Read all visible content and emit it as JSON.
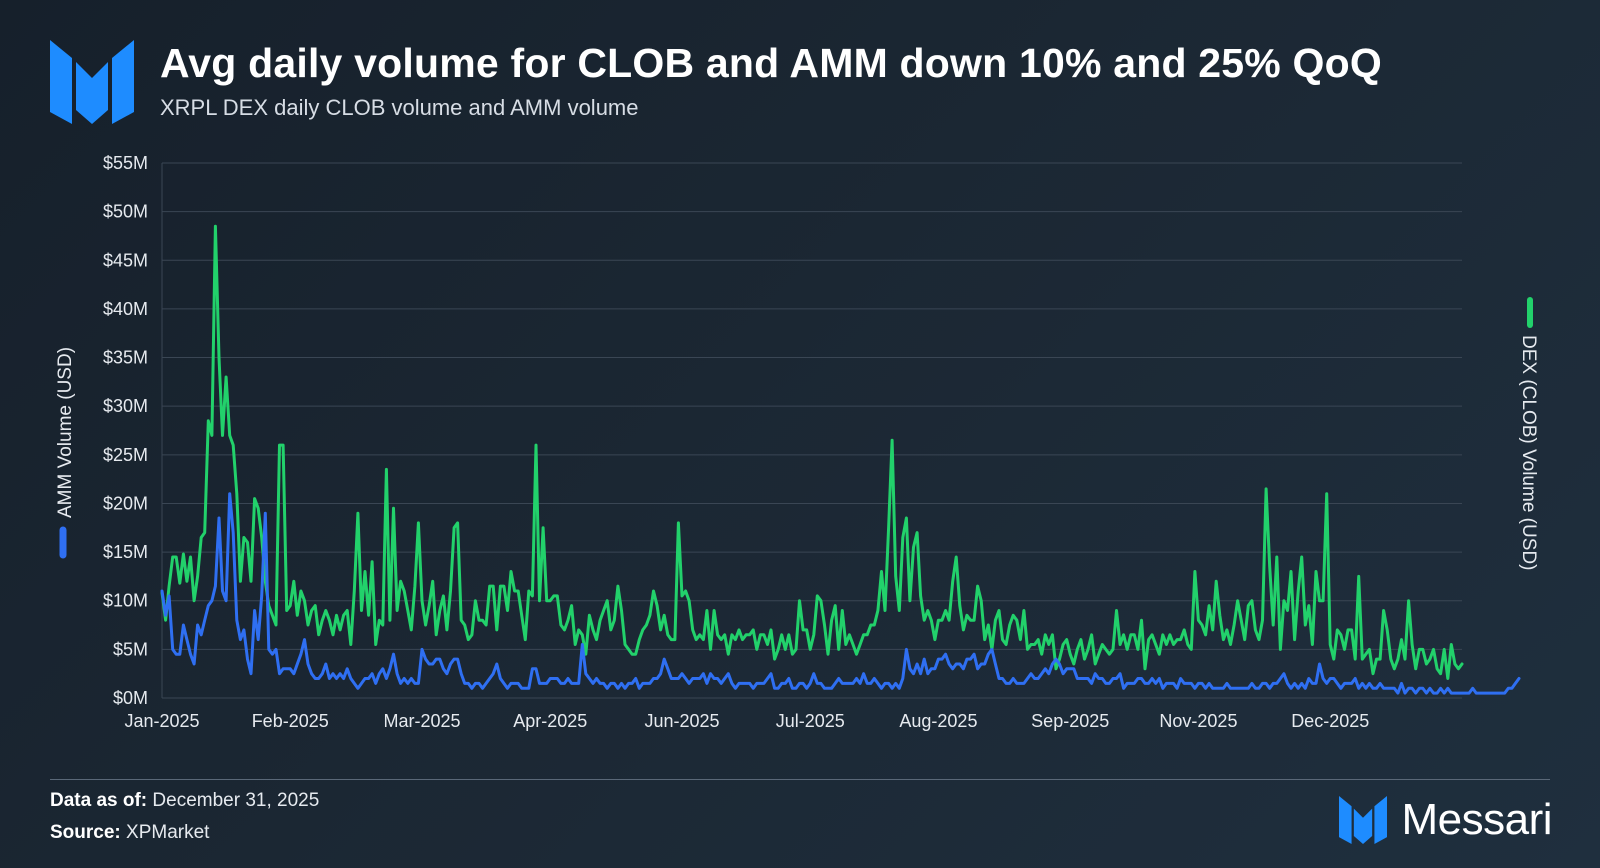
{
  "header": {
    "title": "Avg daily volume for CLOB and AMM down 10% and 25% QoQ",
    "subtitle": "XRPL DEX daily CLOB volume and AMM volume"
  },
  "footer": {
    "data_as_of_label": "Data as of:",
    "data_as_of_value": "December 31, 2025",
    "source_label": "Source:",
    "source_value": "XPMarket",
    "brand": "Messari"
  },
  "colors": {
    "clob": "#22d16b",
    "amm": "#2f6ff2",
    "grid": "#3a4654",
    "axis_text": "#e6eaef",
    "brand_blue": "#1e8cff"
  },
  "chart_data": {
    "type": "line",
    "title": "Avg daily volume for CLOB and AMM down 10% and 25% QoQ",
    "left_axis_label": "AMM Volume (USD)",
    "right_axis_label": "DEX (CLOB) Volume (USD)",
    "ylim": [
      0,
      55
    ],
    "y_unit": "millions USD",
    "yticks": [
      0,
      5,
      10,
      15,
      20,
      25,
      30,
      35,
      40,
      45,
      50,
      55
    ],
    "ytick_labels": [
      "$0M",
      "$5M",
      "$10M",
      "$15M",
      "$20M",
      "$25M",
      "$30M",
      "$35M",
      "$40M",
      "$45M",
      "$50M",
      "$55M"
    ],
    "x_ticks": [
      {
        "label": "Jan-2025",
        "day": 0
      },
      {
        "label": "Feb-2025",
        "day": 36
      },
      {
        "label": "Mar-2025",
        "day": 73
      },
      {
        "label": "Apr-2025",
        "day": 109
      },
      {
        "label": "Jun-2025",
        "day": 146
      },
      {
        "label": "Jul-2025",
        "day": 182
      },
      {
        "label": "Aug-2025",
        "day": 218
      },
      {
        "label": "Sep-2025",
        "day": 255
      },
      {
        "label": "Nov-2025",
        "day": 291
      },
      {
        "label": "Dec-2025",
        "day": 328
      }
    ],
    "grid": true,
    "series": [
      {
        "name": "DEX (CLOB) Volume (USD)",
        "axis": "right",
        "x_start_day": 0,
        "values": [
          10.8,
          8.0,
          11.5,
          14.5,
          14.5,
          11.8,
          14.8,
          12.0,
          14.5,
          10.0,
          12.5,
          16.5,
          17.0,
          28.5,
          27.0,
          48.5,
          35.0,
          27.0,
          33.0,
          27.0,
          26.0,
          21.0,
          12.0,
          16.5,
          16.0,
          12.0,
          20.5,
          19.5,
          16.5,
          12.0,
          9.5,
          8.5,
          7.5,
          26.0,
          26.0,
          9.0,
          9.5,
          12.0,
          8.5,
          11.0,
          10.0,
          7.5,
          9.0,
          9.5,
          6.5,
          8.0,
          9.0,
          8.0,
          6.5,
          8.5,
          7.0,
          8.5,
          9.0,
          5.5,
          11.0,
          19.0,
          9.0,
          13.0,
          8.5,
          14.0,
          5.5,
          8.0,
          7.5,
          23.5,
          8.0,
          19.5,
          9.0,
          12.0,
          11.0,
          9.0,
          7.0,
          11.5,
          18.0,
          10.0,
          7.5,
          9.5,
          12.0,
          6.5,
          9.0,
          10.5,
          7.0,
          11.0,
          17.5,
          18.0,
          8.0,
          7.5,
          6.0,
          6.5,
          10.0,
          8.0,
          8.0,
          7.5,
          11.5,
          11.5,
          7.0,
          11.5,
          11.5,
          9.0,
          13.0,
          11.0,
          11.0,
          8.5,
          6.0,
          11.0,
          10.5,
          26.0,
          10.0,
          17.5,
          10.0,
          10.0,
          10.5,
          10.5,
          7.5,
          7.0,
          8.0,
          9.5,
          5.5,
          7.0,
          6.5,
          4.5,
          8.5,
          7.0,
          6.0,
          8.0,
          9.0,
          10.0,
          7.0,
          8.0,
          11.5,
          9.0,
          5.5,
          5.0,
          4.5,
          4.5,
          6.0,
          7.0,
          7.5,
          8.5,
          11.0,
          9.5,
          7.0,
          8.5,
          6.5,
          6.0,
          6.0,
          18.0,
          10.5,
          11.0,
          10.0,
          7.0,
          6.0,
          6.5,
          6.0,
          9.0,
          5.0,
          9.0,
          6.5,
          6.0,
          6.5,
          4.5,
          6.5,
          6.0,
          7.0,
          6.0,
          6.5,
          6.5,
          7.0,
          5.0,
          6.5,
          6.5,
          5.5,
          7.0,
          4.0,
          5.0,
          6.5,
          5.0,
          6.5,
          4.5,
          5.0,
          10.0,
          7.0,
          7.0,
          5.0,
          6.5,
          10.5,
          10.0,
          7.5,
          4.5,
          8.0,
          9.5,
          5.0,
          9.0,
          5.5,
          6.5,
          5.5,
          4.5,
          5.5,
          6.5,
          6.5,
          7.5,
          7.5,
          9.0,
          13.0,
          9.0,
          17.5,
          26.5,
          12.5,
          9.0,
          16.5,
          18.5,
          10.0,
          15.5,
          17.0,
          10.5,
          8.0,
          9.0,
          8.0,
          6.0,
          8.0,
          8.0,
          9.0,
          8.0,
          12.0,
          14.5,
          9.5,
          7.0,
          8.5,
          8.0,
          8.0,
          11.5,
          10.0,
          6.0,
          7.5,
          5.0,
          8.0,
          9.0,
          6.0,
          5.5,
          7.5,
          8.5,
          8.0,
          6.0,
          9.0,
          5.0,
          5.5,
          5.5,
          6.0,
          4.5,
          6.5,
          5.5,
          6.5,
          3.0,
          4.0,
          5.5,
          6.0,
          4.5,
          3.5,
          5.0,
          6.0,
          4.0,
          5.0,
          6.5,
          3.5,
          4.5,
          5.5,
          5.0,
          4.5,
          5.0,
          9.0,
          5.5,
          6.5,
          5.0,
          6.5,
          6.5,
          5.0,
          8.0,
          3.0,
          6.0,
          6.5,
          5.5,
          4.5,
          6.5,
          5.5,
          6.5,
          5.5,
          6.0,
          6.0,
          7.0,
          5.5,
          5.0,
          13.0,
          8.0,
          7.5,
          6.5,
          9.5,
          7.0,
          12.0,
          8.5,
          6.0,
          7.0,
          5.5,
          7.5,
          10.0,
          8.0,
          6.0,
          9.5,
          10.0,
          7.0,
          6.0,
          8.0,
          21.5,
          13.5,
          7.5,
          14.5,
          5.0,
          10.0,
          9.0,
          13.0,
          6.0,
          11.0,
          14.5,
          7.5,
          9.5,
          5.5,
          13.0,
          10.0,
          10.0,
          21.0,
          5.5,
          4.0,
          7.0,
          6.5,
          5.0,
          7.0,
          7.0,
          4.0,
          12.5,
          4.0,
          4.5,
          5.0,
          2.5,
          4.0,
          4.0,
          9.0,
          7.0,
          4.0,
          3.0,
          4.0,
          6.0,
          4.0,
          10.0,
          5.5,
          3.0,
          5.0,
          5.0,
          3.5,
          4.0,
          5.0,
          3.0,
          2.5,
          5.0,
          2.0,
          5.5,
          3.5,
          3.0,
          3.5
        ]
      },
      {
        "name": "AMM Volume (USD)",
        "axis": "left",
        "x_start_day": 0,
        "values": [
          11.0,
          8.5,
          10.5,
          5.0,
          4.5,
          4.5,
          7.5,
          6.0,
          4.5,
          3.5,
          7.5,
          6.5,
          8.0,
          9.5,
          10.0,
          11.5,
          18.5,
          11.0,
          10.0,
          21.0,
          17.0,
          8.0,
          6.0,
          7.0,
          4.0,
          2.5,
          9.0,
          6.0,
          10.5,
          19.0,
          5.0,
          4.5,
          5.0,
          2.5,
          3.0,
          3.0,
          3.0,
          2.5,
          3.5,
          4.5,
          6.0,
          3.5,
          2.5,
          2.0,
          2.0,
          2.5,
          3.5,
          2.0,
          2.5,
          2.0,
          2.5,
          2.0,
          3.0,
          2.0,
          1.5,
          1.0,
          1.5,
          2.0,
          2.0,
          2.5,
          1.5,
          2.5,
          3.0,
          2.0,
          3.0,
          4.5,
          2.5,
          1.5,
          2.0,
          1.5,
          2.0,
          1.5,
          1.5,
          5.0,
          4.0,
          3.5,
          3.5,
          4.0,
          4.0,
          3.0,
          2.5,
          3.5,
          4.0,
          4.0,
          2.5,
          1.5,
          1.5,
          1.0,
          1.5,
          1.5,
          1.0,
          1.5,
          2.0,
          2.5,
          3.5,
          2.0,
          1.5,
          1.0,
          1.5,
          1.5,
          1.5,
          1.0,
          1.0,
          1.0,
          3.0,
          3.0,
          1.5,
          1.5,
          1.5,
          2.0,
          2.0,
          2.0,
          1.5,
          1.5,
          2.0,
          1.5,
          1.5,
          1.5,
          5.5,
          2.5,
          2.0,
          1.5,
          2.0,
          1.5,
          1.5,
          1.0,
          1.5,
          1.5,
          1.0,
          1.5,
          1.0,
          1.5,
          1.5,
          2.0,
          1.0,
          1.5,
          1.5,
          1.5,
          2.0,
          2.0,
          2.5,
          4.0,
          3.0,
          2.0,
          2.0,
          2.0,
          2.5,
          2.0,
          1.5,
          2.0,
          2.0,
          2.0,
          2.5,
          1.5,
          2.5,
          2.0,
          2.0,
          1.5,
          2.0,
          2.5,
          1.5,
          1.0,
          1.5,
          1.5,
          1.5,
          1.5,
          1.0,
          1.5,
          1.5,
          1.5,
          2.0,
          2.5,
          1.0,
          1.0,
          1.5,
          1.5,
          2.0,
          1.0,
          1.0,
          1.5,
          1.5,
          1.0,
          1.5,
          2.5,
          1.5,
          1.5,
          1.0,
          1.0,
          1.0,
          1.5,
          2.0,
          1.5,
          1.5,
          1.5,
          1.5,
          2.0,
          1.5,
          2.5,
          1.5,
          1.5,
          2.0,
          1.5,
          1.0,
          1.5,
          1.5,
          1.0,
          1.5,
          1.0,
          2.0,
          5.0,
          3.0,
          2.5,
          3.5,
          2.5,
          4.0,
          2.5,
          3.0,
          3.0,
          4.0,
          4.0,
          4.5,
          3.5,
          3.0,
          3.5,
          3.5,
          3.0,
          4.0,
          4.0,
          4.5,
          3.0,
          3.5,
          3.5,
          4.5,
          5.0,
          3.5,
          2.0,
          2.0,
          1.5,
          1.5,
          2.0,
          1.5,
          1.5,
          1.5,
          2.0,
          2.5,
          2.0,
          2.0,
          2.5,
          3.0,
          2.5,
          3.5,
          4.0,
          3.5,
          2.5,
          3.0,
          3.0,
          3.0,
          2.0,
          2.0,
          2.0,
          2.0,
          1.5,
          2.5,
          2.0,
          2.0,
          1.5,
          1.5,
          2.0,
          2.0,
          2.5,
          1.0,
          1.5,
          1.5,
          1.5,
          2.0,
          2.0,
          1.5,
          1.5,
          2.0,
          1.5,
          2.0,
          1.0,
          1.5,
          1.5,
          1.5,
          1.0,
          2.0,
          1.5,
          1.5,
          1.5,
          1.0,
          1.5,
          1.5,
          1.0,
          1.5,
          1.0,
          1.0,
          1.0,
          1.0,
          1.5,
          1.0,
          1.0,
          1.0,
          1.0,
          1.0,
          1.0,
          1.5,
          1.0,
          1.0,
          1.5,
          1.5,
          1.0,
          1.5,
          1.5,
          2.0,
          2.5,
          1.5,
          1.0,
          1.5,
          1.0,
          1.5,
          1.0,
          2.0,
          1.5,
          1.5,
          3.5,
          2.0,
          1.5,
          2.0,
          2.0,
          1.5,
          1.0,
          1.5,
          1.5,
          1.5,
          2.0,
          1.0,
          1.5,
          1.0,
          1.5,
          1.0,
          1.0,
          1.5,
          1.0,
          1.0,
          1.0,
          1.0,
          0.5,
          1.5,
          0.5,
          1.0,
          1.0,
          0.5,
          1.0,
          1.0,
          0.5,
          1.0,
          0.5,
          0.5,
          1.0,
          0.5,
          1.0,
          0.5,
          0.5,
          0.5,
          0.5,
          0.5,
          0.5,
          1.0,
          0.5,
          0.5,
          0.5,
          0.5,
          0.5,
          0.5,
          0.5,
          0.5,
          0.5,
          1.0,
          1.0,
          1.5,
          2.0
        ]
      }
    ]
  }
}
